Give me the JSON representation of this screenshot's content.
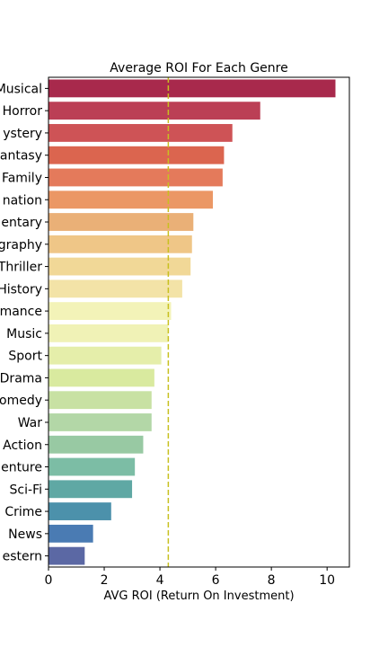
{
  "chart_data": {
    "type": "bar",
    "orientation": "horizontal",
    "title": "Average ROI For Each Genre",
    "xlabel": "AVG ROI (Return On Investment)",
    "ylabel": "",
    "xlim": [
      0,
      10.8
    ],
    "xticks": [
      0,
      2,
      4,
      6,
      8,
      10
    ],
    "xtick_labels": [
      "0",
      "2",
      "4",
      "6",
      "8",
      "10"
    ],
    "grid": false,
    "categories": [
      "Musical",
      "Horror",
      "ystery",
      "antasy",
      "Family",
      "nation",
      "entary",
      "graphy",
      "Thriller",
      "History",
      "mance",
      "Music",
      "Sport",
      "Drama",
      "omedy",
      "War",
      "Action",
      "enture",
      "Sci-Fi",
      "Crime",
      "News",
      "estern"
    ],
    "values": [
      10.3,
      7.6,
      6.6,
      6.3,
      6.25,
      5.9,
      5.2,
      5.15,
      5.1,
      4.8,
      4.4,
      4.3,
      4.05,
      3.8,
      3.7,
      3.7,
      3.4,
      3.1,
      3.0,
      2.25,
      1.6,
      1.3
    ],
    "colors": [
      "#a8294c",
      "#bb3f55",
      "#ce5356",
      "#db654f",
      "#e47a5b",
      "#eb9765",
      "#eab077",
      "#efc687",
      "#f1d897",
      "#f3e3a7",
      "#f3f3b8",
      "#f0f2b6",
      "#e5eeaa",
      "#d9ea9f",
      "#c8e1a3",
      "#b3d7a7",
      "#98c9a3",
      "#7cbda5",
      "#5fa8a4",
      "#4c91ab",
      "#4a7bb3",
      "#5b68a4"
    ],
    "reference_line": {
      "value": 4.3,
      "color": "#c8c020",
      "style": "dashed"
    }
  }
}
